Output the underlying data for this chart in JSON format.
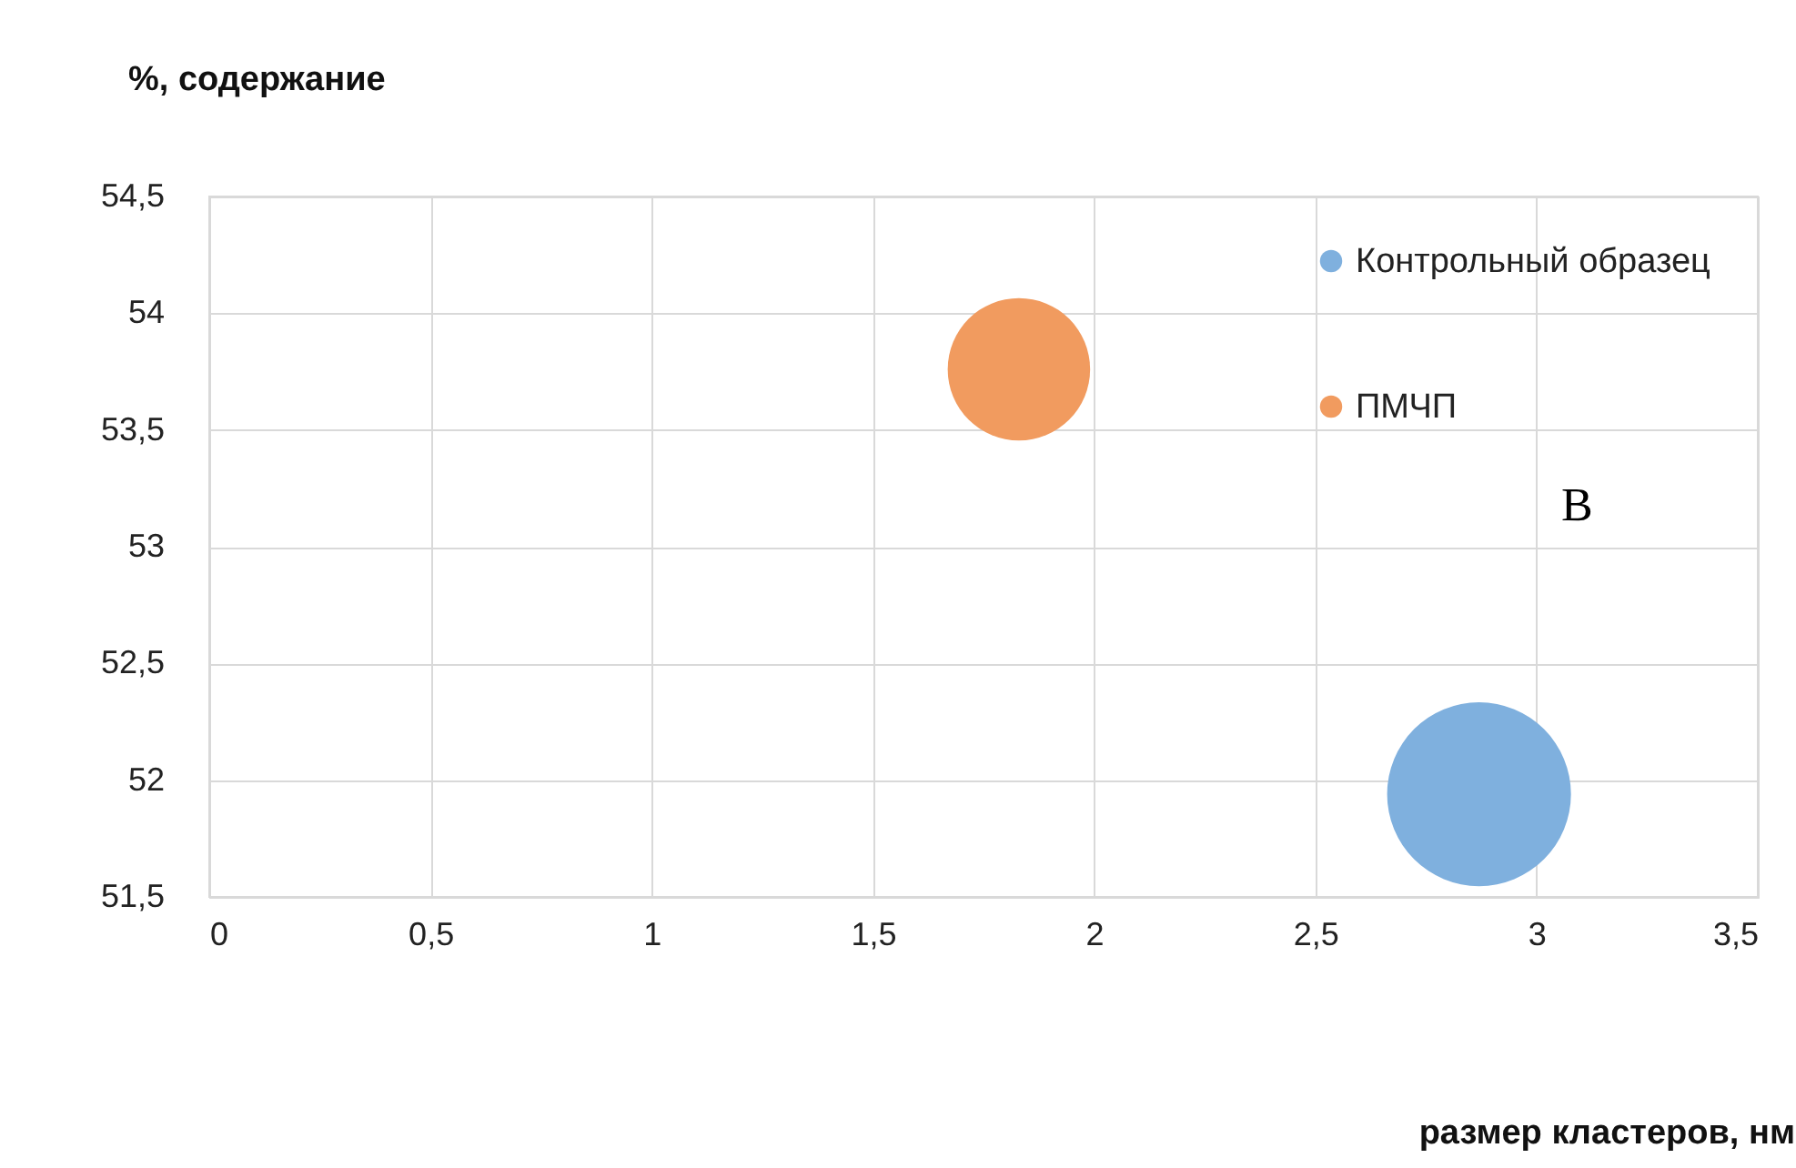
{
  "chart_data": {
    "type": "bubble",
    "xlabel": "размер кластеров, нм",
    "ylabel": "%, содержание",
    "series": [
      {
        "name": "Контрольный образец",
        "color": "#7fb0de",
        "x": [
          2.87
        ],
        "values": [
          51.94
        ],
        "sizes": [
          1
        ]
      },
      {
        "name": "ПМЧП",
        "color": "#f19b5f",
        "x": [
          1.83
        ],
        "values": [
          53.76
        ],
        "sizes": [
          0.6
        ]
      }
    ],
    "xlim": [
      0,
      3.5
    ],
    "ylim": [
      51.5,
      54.5
    ],
    "xticks": [
      0,
      {
        "value": 0.5,
        "label": "0,5"
      },
      1,
      {
        "value": 1.5,
        "label": "1,5"
      },
      2,
      {
        "value": 2.5,
        "label": "2,5"
      },
      3,
      {
        "value": 3.5,
        "label": "3,5"
      }
    ],
    "yticks": [
      {
        "value": 51.5,
        "label": "51,5"
      },
      52,
      {
        "value": 52.5,
        "label": "52,5"
      },
      53,
      {
        "value": 53.5,
        "label": "53,5"
      },
      54,
      {
        "value": 54.5,
        "label": "54,5"
      }
    ],
    "grid": true,
    "legend": "top right",
    "annotations": [
      "В"
    ]
  }
}
